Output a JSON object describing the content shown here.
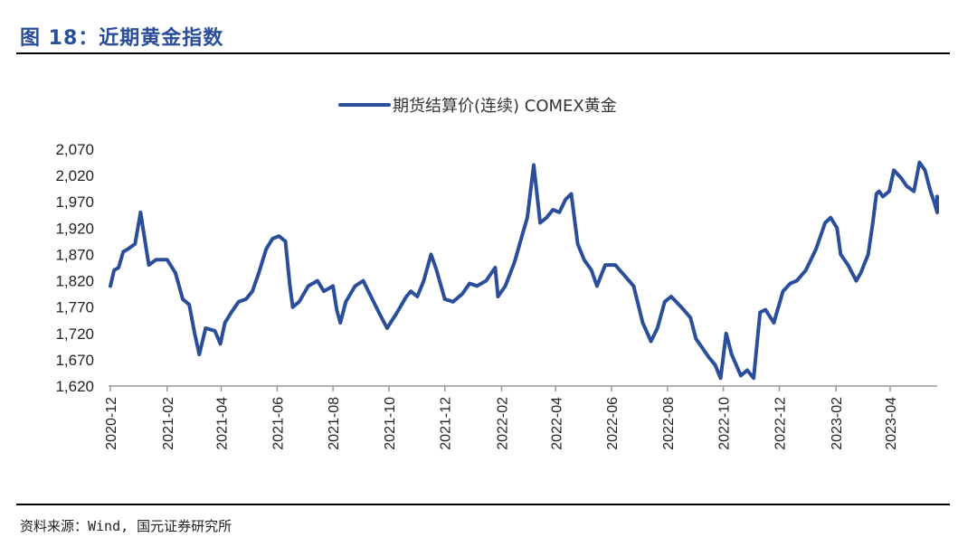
{
  "figure": {
    "title": "图 18：近期黄金指数",
    "source": "资料来源：Wind, 国元证券研究所"
  },
  "colors": {
    "title": "#2a4e9a",
    "series": "#2a4e9a",
    "axis": "#999999"
  },
  "chart_data": {
    "type": "line",
    "title": "",
    "xlabel": "",
    "ylabel": "",
    "ylim": [
      1620,
      2070
    ],
    "yticks": [
      "1,620",
      "1,670",
      "1,720",
      "1,770",
      "1,820",
      "1,870",
      "1,920",
      "1,970",
      "2,020",
      "2,070"
    ],
    "xticks": [
      "2020-12",
      "2021-02",
      "2021-04",
      "2021-06",
      "2021-08",
      "2021-10",
      "2021-12",
      "2022-02",
      "2022-04",
      "2022-06",
      "2022-08",
      "2022-10",
      "2022-12",
      "2023-02",
      "2023-04"
    ],
    "grid": false,
    "legend_position": "top-center",
    "series": [
      {
        "name": "期货结算价(连续) COMEX黄金",
        "x": [
          "2020-12-01",
          "2020-12-05",
          "2020-12-10",
          "2020-12-15",
          "2020-12-20",
          "2020-12-28",
          "2021-01-03",
          "2021-01-06",
          "2021-01-12",
          "2021-01-20",
          "2021-02-01",
          "2021-02-10",
          "2021-02-18",
          "2021-02-25",
          "2021-03-03",
          "2021-03-08",
          "2021-03-15",
          "2021-03-25",
          "2021-03-31",
          "2021-04-05",
          "2021-04-12",
          "2021-04-20",
          "2021-04-28",
          "2021-05-05",
          "2021-05-12",
          "2021-05-20",
          "2021-05-27",
          "2021-06-03",
          "2021-06-10",
          "2021-06-15",
          "2021-06-18",
          "2021-06-25",
          "2021-07-05",
          "2021-07-15",
          "2021-07-22",
          "2021-08-01",
          "2021-08-05",
          "2021-08-09",
          "2021-08-15",
          "2021-08-25",
          "2021-09-03",
          "2021-09-10",
          "2021-09-20",
          "2021-09-29",
          "2021-10-10",
          "2021-10-20",
          "2021-10-25",
          "2021-11-01",
          "2021-11-08",
          "2021-11-16",
          "2021-11-22",
          "2021-12-01",
          "2021-12-10",
          "2021-12-20",
          "2021-12-28",
          "2022-01-05",
          "2022-01-15",
          "2022-01-25",
          "2022-01-28",
          "2022-02-05",
          "2022-02-15",
          "2022-02-24",
          "2022-03-01",
          "2022-03-08",
          "2022-03-15",
          "2022-03-22",
          "2022-03-29",
          "2022-04-05",
          "2022-04-12",
          "2022-04-18",
          "2022-04-25",
          "2022-05-02",
          "2022-05-10",
          "2022-05-16",
          "2022-05-25",
          "2022-06-05",
          "2022-06-10",
          "2022-06-15",
          "2022-06-25",
          "2022-07-05",
          "2022-07-14",
          "2022-07-21",
          "2022-07-29",
          "2022-08-05",
          "2022-08-16",
          "2022-08-26",
          "2022-09-01",
          "2022-09-15",
          "2022-09-22",
          "2022-09-28",
          "2022-10-04",
          "2022-10-10",
          "2022-10-20",
          "2022-10-27",
          "2022-11-03",
          "2022-11-10",
          "2022-11-16",
          "2022-11-25",
          "2022-12-05",
          "2022-12-13",
          "2022-12-20",
          "2022-12-30",
          "2023-01-10",
          "2023-01-20",
          "2023-01-26",
          "2023-02-02",
          "2023-02-06",
          "2023-02-14",
          "2023-02-23",
          "2023-02-28",
          "2023-03-08",
          "2023-03-13",
          "2023-03-17",
          "2023-03-20",
          "2023-03-24",
          "2023-03-31",
          "2023-04-05",
          "2023-04-13",
          "2023-04-19",
          "2023-04-27",
          "2023-05-03",
          "2023-05-09",
          "2023-05-15",
          "2023-05-19",
          "2023-05-25",
          "2023-05-31"
        ],
        "values": [
          1810,
          1840,
          1845,
          1875,
          1880,
          1890,
          1950,
          1915,
          1850,
          1860,
          1860,
          1835,
          1785,
          1775,
          1720,
          1680,
          1730,
          1725,
          1700,
          1740,
          1760,
          1780,
          1785,
          1800,
          1835,
          1880,
          1900,
          1905,
          1895,
          1810,
          1770,
          1780,
          1810,
          1820,
          1800,
          1810,
          1765,
          1740,
          1780,
          1810,
          1820,
          1795,
          1760,
          1730,
          1760,
          1790,
          1800,
          1790,
          1820,
          1870,
          1840,
          1785,
          1780,
          1795,
          1815,
          1810,
          1820,
          1845,
          1790,
          1810,
          1855,
          1910,
          1940,
          2040,
          1930,
          1940,
          1955,
          1950,
          1975,
          1985,
          1890,
          1860,
          1840,
          1810,
          1850,
          1850,
          1840,
          1830,
          1810,
          1740,
          1705,
          1730,
          1780,
          1790,
          1770,
          1750,
          1710,
          1675,
          1660,
          1635,
          1720,
          1680,
          1640,
          1650,
          1635,
          1760,
          1765,
          1740,
          1800,
          1815,
          1820,
          1840,
          1880,
          1930,
          1940,
          1920,
          1870,
          1850,
          1820,
          1835,
          1870,
          1930,
          1985,
          1990,
          1980,
          1990,
          2030,
          2015,
          2000,
          1990,
          2045,
          2030,
          1990,
          1970,
          1950,
          1980
        ]
      }
    ]
  }
}
